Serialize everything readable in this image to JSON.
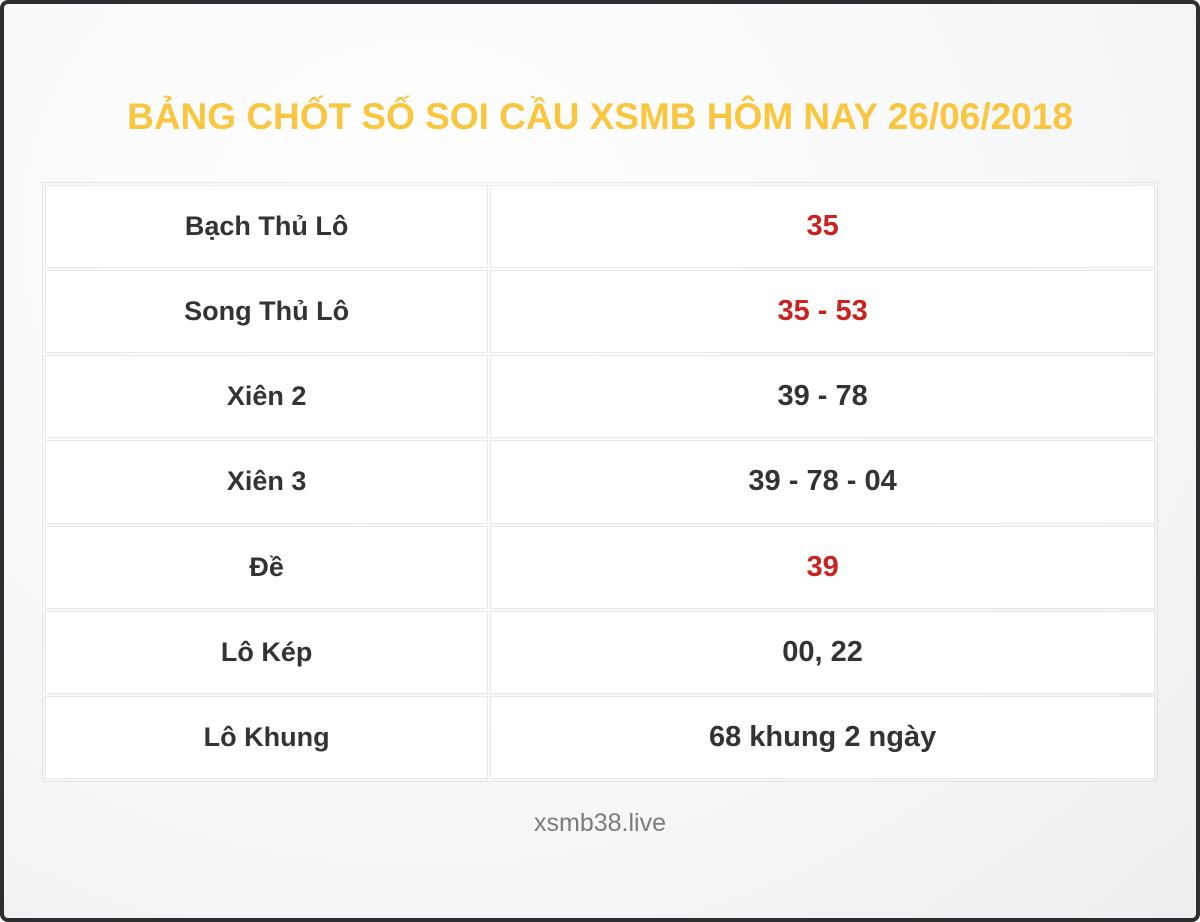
{
  "page": {
    "title": "BẢNG CHỐT SỐ SOI CẦU XSMB HÔM NAY 26/06/2018",
    "footer": "xsmb38.live"
  },
  "colors": {
    "title_yellow": "#fac53f",
    "value_red": "#c9221f",
    "label_dark": "#333333",
    "footer_gray": "#7b7b7b",
    "frame_border": "#2c2e31",
    "cell_border": "#e7e8e8",
    "cell_background": "#ffffff"
  },
  "table": {
    "rows": [
      {
        "label": "Bạch Thủ Lô",
        "value": "35",
        "highlight": true
      },
      {
        "label": "Song Thủ Lô",
        "value": "35 - 53",
        "highlight": true
      },
      {
        "label": "Xiên 2",
        "value": "39 - 78",
        "highlight": false
      },
      {
        "label": "Xiên 3",
        "value": "39 - 78 - 04",
        "highlight": false
      },
      {
        "label": "Đề",
        "value": "39",
        "highlight": true
      },
      {
        "label": "Lô Kép",
        "value": "00, 22",
        "highlight": false
      },
      {
        "label": "Lô Khung",
        "value": "68 khung 2 ngày",
        "highlight": false
      }
    ]
  }
}
